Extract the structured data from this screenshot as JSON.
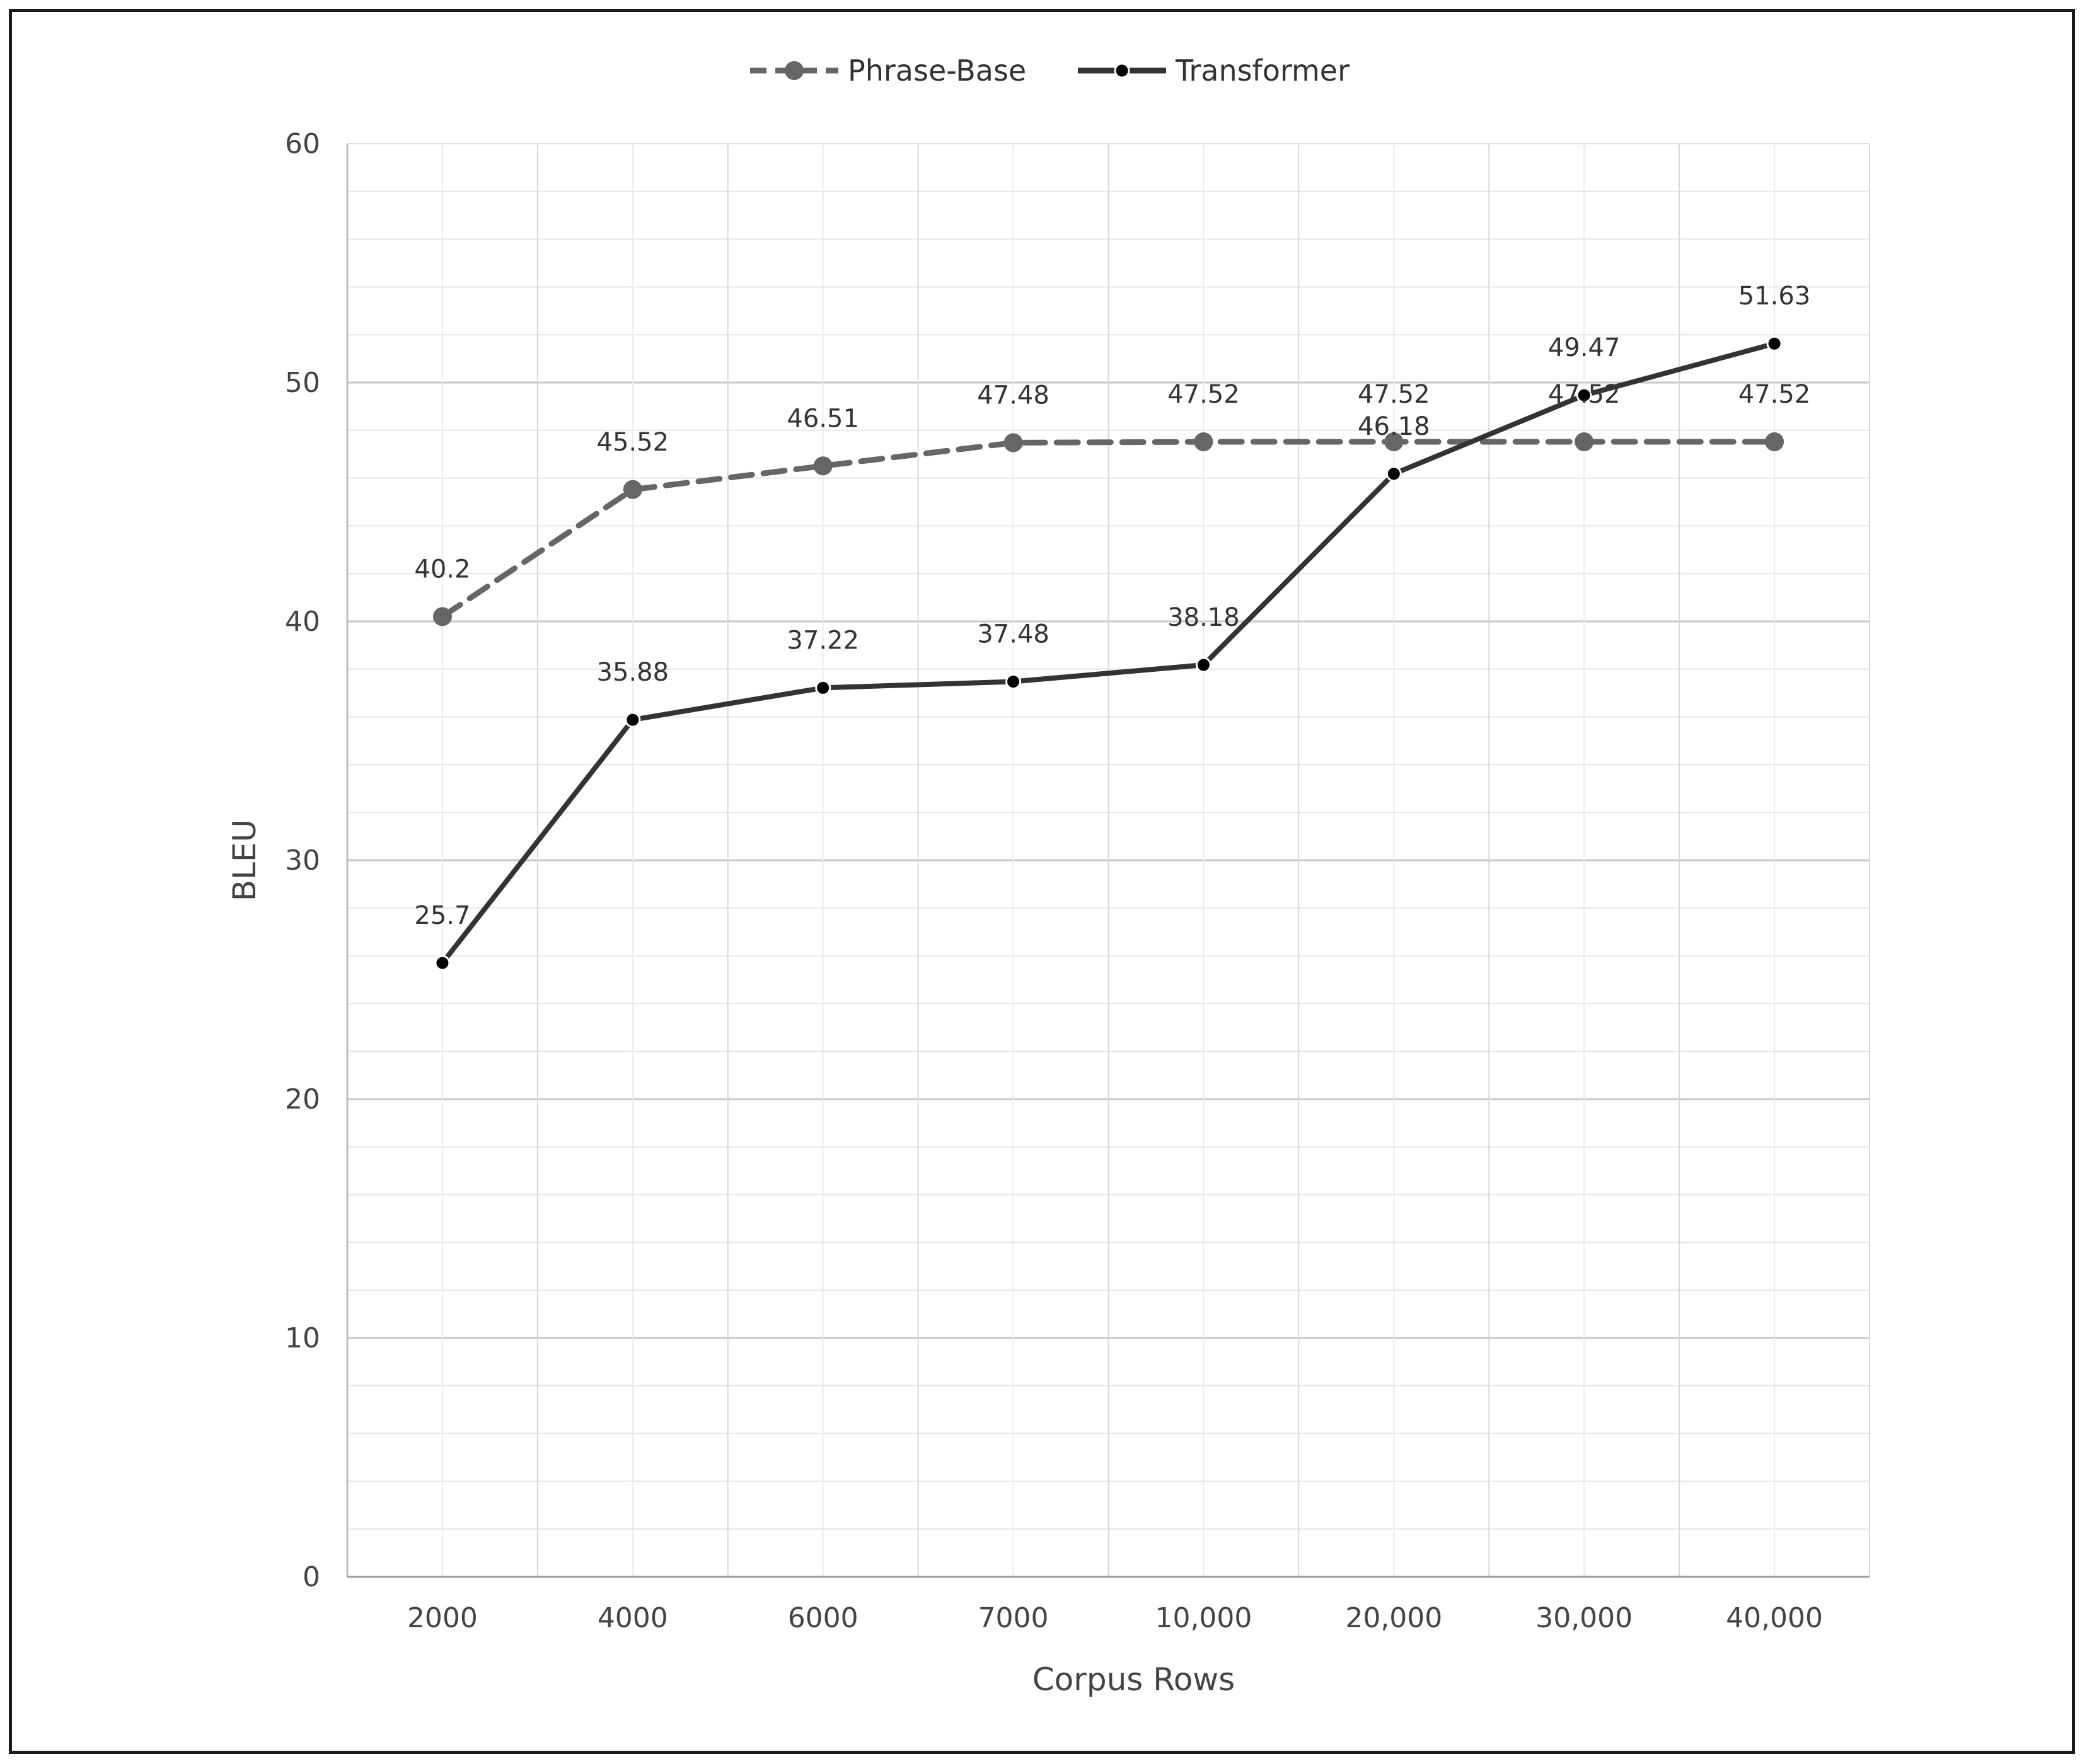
{
  "chart_data": {
    "type": "line",
    "categories": [
      "2000",
      "4000",
      "6000",
      "7000",
      "10,000",
      "20,000",
      "30,000",
      "40,000"
    ],
    "series": [
      {
        "name": "Phrase-Base",
        "values": [
          40.2,
          45.52,
          46.51,
          47.48,
          47.52,
          47.52,
          47.52,
          47.52
        ],
        "labels": [
          "40.2",
          "45.52",
          "46.51",
          "47.48",
          "47.52",
          "47.52",
          "47.52",
          "47.52"
        ],
        "color": "#666666",
        "dashed": true,
        "marker": "circle-large"
      },
      {
        "name": "Transformer",
        "values": [
          25.7,
          35.88,
          37.22,
          37.48,
          38.18,
          46.18,
          49.47,
          51.63
        ],
        "labels": [
          "25.7",
          "35.88",
          "37.22",
          "37.48",
          "38.18",
          "46.18",
          "49.47",
          "51.63"
        ],
        "color": "#333333",
        "dashed": false,
        "marker": "circle-small"
      }
    ],
    "xlabel": "Corpus Rows",
    "ylabel": "BLEU",
    "ylim": [
      0,
      60
    ],
    "yticks": [
      0,
      10,
      20,
      30,
      40,
      50,
      60
    ],
    "grid": true,
    "legend_position": "top-center"
  }
}
